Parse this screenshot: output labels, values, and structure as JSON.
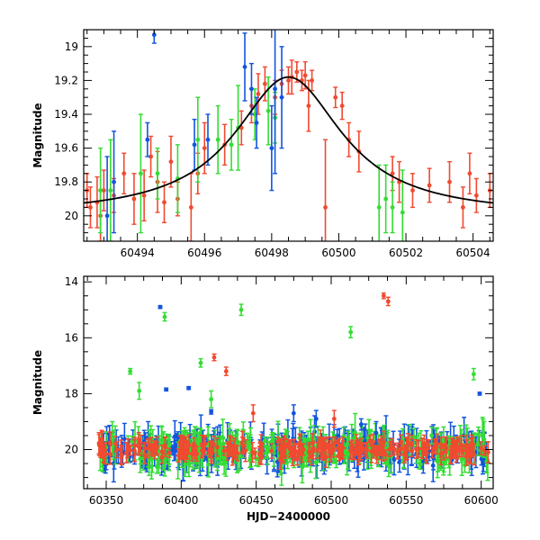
{
  "chart_data": [
    {
      "id": "top",
      "type": "scatter",
      "ylabel": "Magnitude",
      "xlabel": "",
      "xlim": [
        60492.4,
        60504.6
      ],
      "ylim": [
        20.15,
        18.9
      ],
      "y_inverted": true,
      "x_ticks": [
        60494,
        60496,
        60498,
        60500,
        60502,
        60504
      ],
      "y_ticks": [
        19,
        19.2,
        19.4,
        19.6,
        19.8,
        20
      ],
      "y_tick_labels": [
        "19",
        "19.2",
        "19.4",
        "19.6",
        "19.8",
        "20"
      ],
      "grid": false,
      "colors": {
        "red": "#f04a30",
        "green": "#33dd33",
        "blue": "#1155dd",
        "model": "#000000"
      },
      "model_curve": {
        "peak_x": 60498.5,
        "peak_mag": 19.18,
        "base_mag": 20.0,
        "width": 1.95
      },
      "series": [
        {
          "color": "red",
          "points": [
            [
              60492.5,
              19.85,
              0.1
            ],
            [
              60492.6,
              19.95,
              0.12
            ],
            [
              60492.8,
              19.92,
              0.15
            ],
            [
              60492.9,
              20.0,
              0.15
            ],
            [
              60493.0,
              19.85,
              0.12
            ],
            [
              60493.3,
              19.88,
              0.1
            ],
            [
              60493.6,
              19.75,
              0.12
            ],
            [
              60493.9,
              19.9,
              0.15
            ],
            [
              60494.2,
              19.88,
              0.15
            ],
            [
              60494.4,
              19.65,
              0.12
            ],
            [
              60494.6,
              19.8,
              0.18
            ],
            [
              60494.8,
              19.92,
              0.12
            ],
            [
              60495.0,
              19.68,
              0.15
            ],
            [
              60495.2,
              19.9,
              0.1
            ],
            [
              60495.6,
              19.95,
              0.2
            ],
            [
              60495.8,
              19.75,
              0.12
            ],
            [
              60496.0,
              19.6,
              0.15
            ],
            [
              60496.6,
              19.58,
              0.12
            ],
            [
              60497.1,
              19.48,
              0.1
            ],
            [
              60497.4,
              19.35,
              0.1
            ],
            [
              60497.6,
              19.28,
              0.12
            ],
            [
              60497.8,
              19.22,
              0.1
            ],
            [
              60498.1,
              19.3,
              0.1
            ],
            [
              60498.3,
              19.22,
              0.08
            ],
            [
              60498.5,
              19.2,
              0.08
            ],
            [
              60498.6,
              19.18,
              0.1
            ],
            [
              60498.75,
              19.15,
              0.06
            ],
            [
              60498.9,
              19.2,
              0.06
            ],
            [
              60499.0,
              19.17,
              0.08
            ],
            [
              60499.1,
              19.35,
              0.15
            ],
            [
              60499.2,
              19.2,
              0.06
            ],
            [
              60499.6,
              19.95,
              0.4
            ],
            [
              60499.9,
              19.3,
              0.06
            ],
            [
              60500.1,
              19.35,
              0.08
            ],
            [
              60500.3,
              19.55,
              0.1
            ],
            [
              60500.6,
              19.62,
              0.12
            ],
            [
              60501.6,
              19.75,
              0.1
            ],
            [
              60501.8,
              19.8,
              0.12
            ],
            [
              60502.2,
              19.85,
              0.1
            ],
            [
              60502.7,
              19.82,
              0.1
            ],
            [
              60503.3,
              19.8,
              0.12
            ],
            [
              60503.7,
              19.95,
              0.12
            ],
            [
              60503.9,
              19.75,
              0.12
            ],
            [
              60504.1,
              19.88,
              0.1
            ],
            [
              60504.5,
              19.85,
              0.1
            ]
          ]
        },
        {
          "color": "green",
          "points": [
            [
              60492.9,
              19.85,
              0.25
            ],
            [
              60493.2,
              19.85,
              0.3
            ],
            [
              60494.1,
              19.75,
              0.35
            ],
            [
              60494.6,
              19.75,
              0.15
            ],
            [
              60495.2,
              19.78,
              0.2
            ],
            [
              60495.8,
              19.55,
              0.25
            ],
            [
              60496.4,
              19.55,
              0.2
            ],
            [
              60496.8,
              19.58,
              0.15
            ],
            [
              60497.0,
              19.48,
              0.25
            ],
            [
              60497.5,
              19.4,
              0.15
            ],
            [
              60497.9,
              19.38,
              0.2
            ],
            [
              60498.1,
              19.42,
              0.15
            ],
            [
              60501.2,
              19.95,
              0.25
            ],
            [
              60501.4,
              19.9,
              0.2
            ],
            [
              60501.6,
              19.95,
              0.15
            ],
            [
              60501.9,
              19.98,
              0.25
            ]
          ]
        },
        {
          "color": "blue",
          "points": [
            [
              60493.1,
              20.0,
              0.35
            ],
            [
              60493.3,
              19.8,
              0.3
            ],
            [
              60494.3,
              19.55,
              0.1
            ],
            [
              60494.5,
              18.93,
              0.05
            ],
            [
              60495.7,
              19.58,
              0.15
            ],
            [
              60496.1,
              19.55,
              0.15
            ],
            [
              60497.2,
              19.12,
              0.2
            ],
            [
              60497.4,
              19.25,
              0.15
            ],
            [
              60497.55,
              19.45,
              0.15
            ],
            [
              60498.0,
              19.6,
              0.25
            ],
            [
              60498.1,
              19.25,
              0.5
            ],
            [
              60498.3,
              19.3,
              0.3
            ]
          ]
        }
      ]
    },
    {
      "id": "bottom",
      "type": "scatter",
      "ylabel": "Magnitude",
      "xlabel": "HJD−2400000",
      "xlim": [
        60335,
        60608
      ],
      "ylim": [
        21.4,
        13.8
      ],
      "y_inverted": true,
      "x_ticks": [
        60350,
        60400,
        60450,
        60500,
        60550,
        60600
      ],
      "y_ticks": [
        14,
        16,
        18,
        20
      ],
      "y_tick_labels": [
        "14",
        "16",
        "18",
        "20"
      ],
      "grid": false,
      "colors": {
        "red": "#f04a30",
        "green": "#33dd33",
        "blue": "#1155dd"
      },
      "baseline_band": {
        "x_start": 60345,
        "x_end": 60605,
        "mag": 20.0,
        "spread": 0.35,
        "points_per_color": 260
      },
      "outliers": [
        {
          "color": "green",
          "points": [
            [
              60366,
              17.2,
              0.1
            ],
            [
              60372,
              17.9,
              0.3
            ],
            [
              60389,
              15.25,
              0.15
            ],
            [
              60413,
              16.9,
              0.15
            ],
            [
              60420,
              18.2,
              0.3
            ],
            [
              60440,
              15.0,
              0.2
            ],
            [
              60513,
              15.8,
              0.2
            ],
            [
              60567,
              19.5,
              0.3
            ],
            [
              60595,
              17.3,
              0.2
            ]
          ]
        },
        {
          "color": "red",
          "points": [
            [
              60422,
              16.7,
              0.12
            ],
            [
              60430,
              17.2,
              0.15
            ],
            [
              60535,
              14.5,
              0.1
            ],
            [
              60538,
              14.7,
              0.15
            ],
            [
              60448,
              18.7,
              0.3
            ],
            [
              60502,
              18.9,
              0.3
            ]
          ]
        },
        {
          "color": "blue",
          "points": [
            [
              60386,
              14.9,
              0.05
            ],
            [
              60390,
              17.85,
              0.05
            ],
            [
              60405,
              17.8,
              0.05
            ],
            [
              60420,
              18.65,
              0.08
            ],
            [
              60475,
              18.7,
              0.3
            ],
            [
              60490,
              18.9,
              0.3
            ],
            [
              60520,
              19.1,
              0.2
            ],
            [
              60530,
              19.4,
              0.4
            ],
            [
              60599,
              18.0,
              0.05
            ]
          ]
        }
      ]
    }
  ]
}
